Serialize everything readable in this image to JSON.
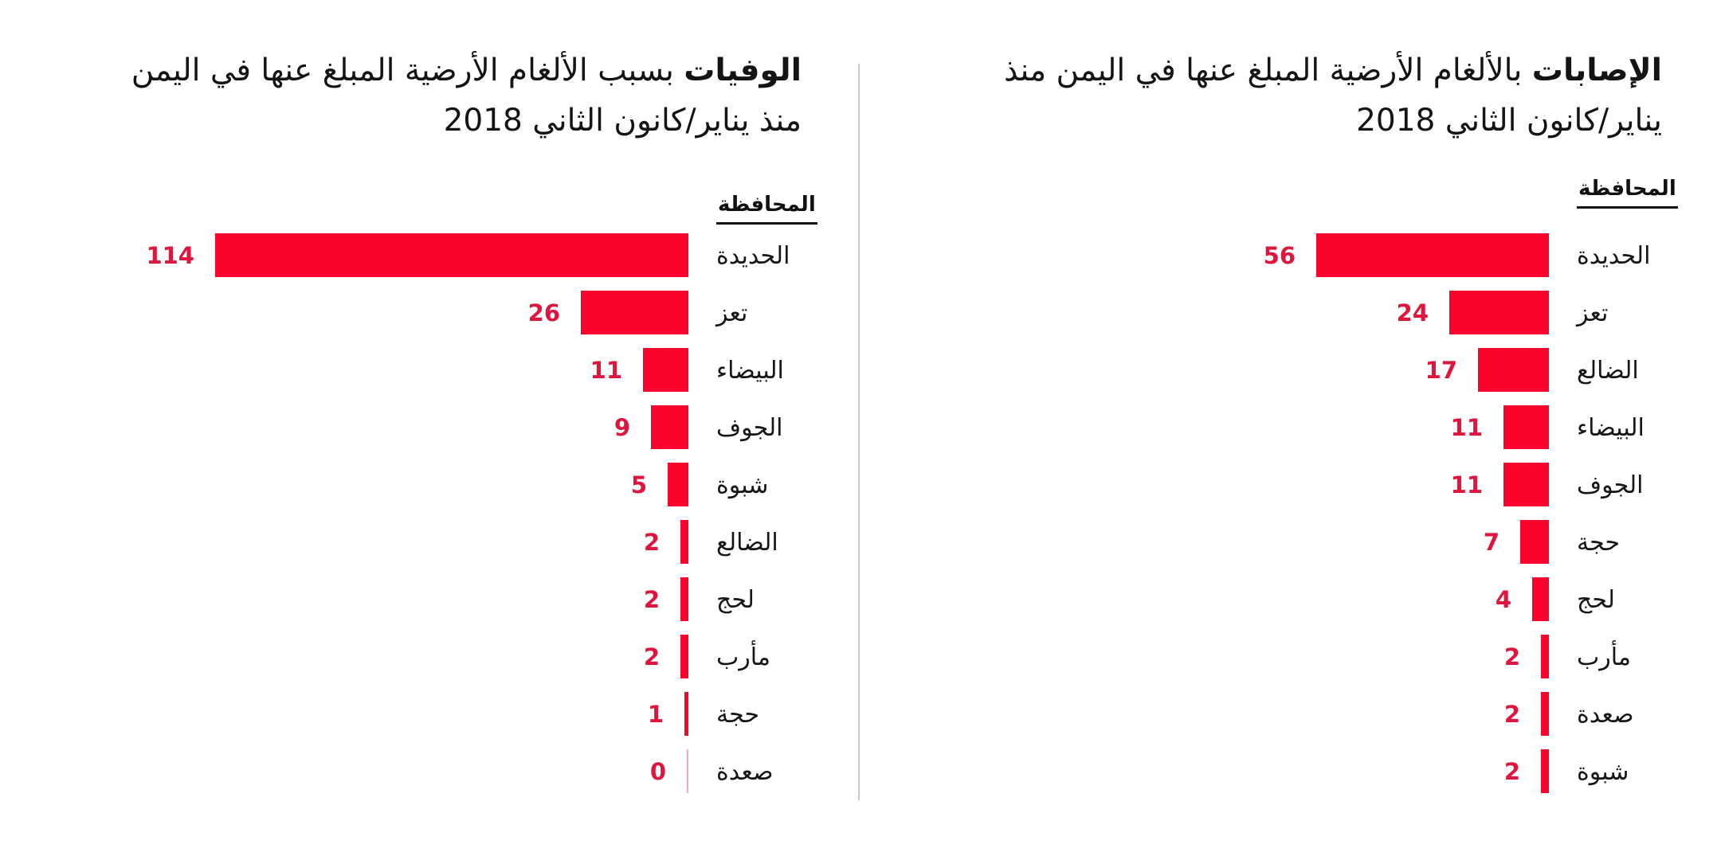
{
  "colors": {
    "bar": "#f8042d",
    "zero_bar": "#f7a8b8",
    "value_label": "#de163e",
    "text": "#1a1a1a",
    "divider": "#cacaca",
    "background": "#ffffff"
  },
  "chart_data": [
    {
      "type": "bar",
      "orientation": "horizontal",
      "title": "الإصابات بالألغام الأرضية المبلغ عنها في اليمن منذ يناير/كانون الثاني 2018",
      "title_parts": {
        "bold": "الإصابات",
        "line1_rest": " بالألغام الأرضية المبلغ عنها في اليمن منذ",
        "line2": "يناير/كانون الثاني 2018"
      },
      "column_header": "المحافظة",
      "categories": [
        "الحديدة",
        "تعز",
        "الضالع",
        "البيضاء",
        "الجوف",
        "حجة",
        "لحج",
        "مأرب",
        "صعدة",
        "شبوة"
      ],
      "values": [
        56,
        24,
        17,
        11,
        11,
        7,
        4,
        2,
        2,
        2
      ],
      "value_labels_shown": true,
      "grid": false,
      "legend": false,
      "xlim": [
        0,
        120
      ],
      "bar_color": "#f8042d"
    },
    {
      "type": "bar",
      "orientation": "horizontal",
      "title": "الوفيات بسبب الألغام الأرضية المبلغ عنها في اليمن منذ يناير/كانون الثاني 2018",
      "title_parts": {
        "bold": "الوفيات",
        "line1_rest": " بسبب الألغام الأرضية المبلغ عنها في اليمن",
        "line2": "منذ يناير/كانون الثاني 2018"
      },
      "column_header": "المحافظة",
      "categories": [
        "الحديدة",
        "تعز",
        "البيضاء",
        "الجوف",
        "شبوة",
        "الضالع",
        "لحج",
        "مأرب",
        "حجة",
        "صعدة"
      ],
      "values": [
        114,
        26,
        11,
        9,
        5,
        2,
        2,
        2,
        1,
        0
      ],
      "value_labels_shown": true,
      "grid": false,
      "legend": false,
      "xlim": [
        0,
        120
      ],
      "bar_color": "#f8042d"
    }
  ]
}
